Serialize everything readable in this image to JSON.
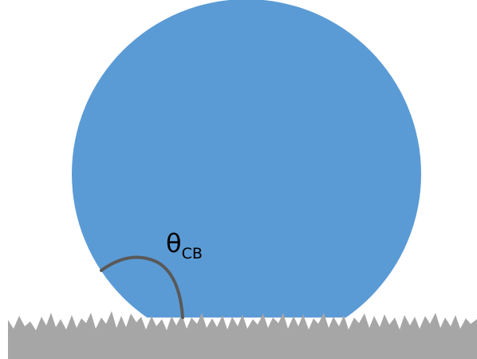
{
  "angle_label": {
    "symbol": "θ",
    "subscript": "CB"
  },
  "colors": {
    "droplet": "#5b9bd5",
    "surface": "#a6a6a6",
    "angle_arc": "#595959",
    "background": "#ffffff"
  }
}
